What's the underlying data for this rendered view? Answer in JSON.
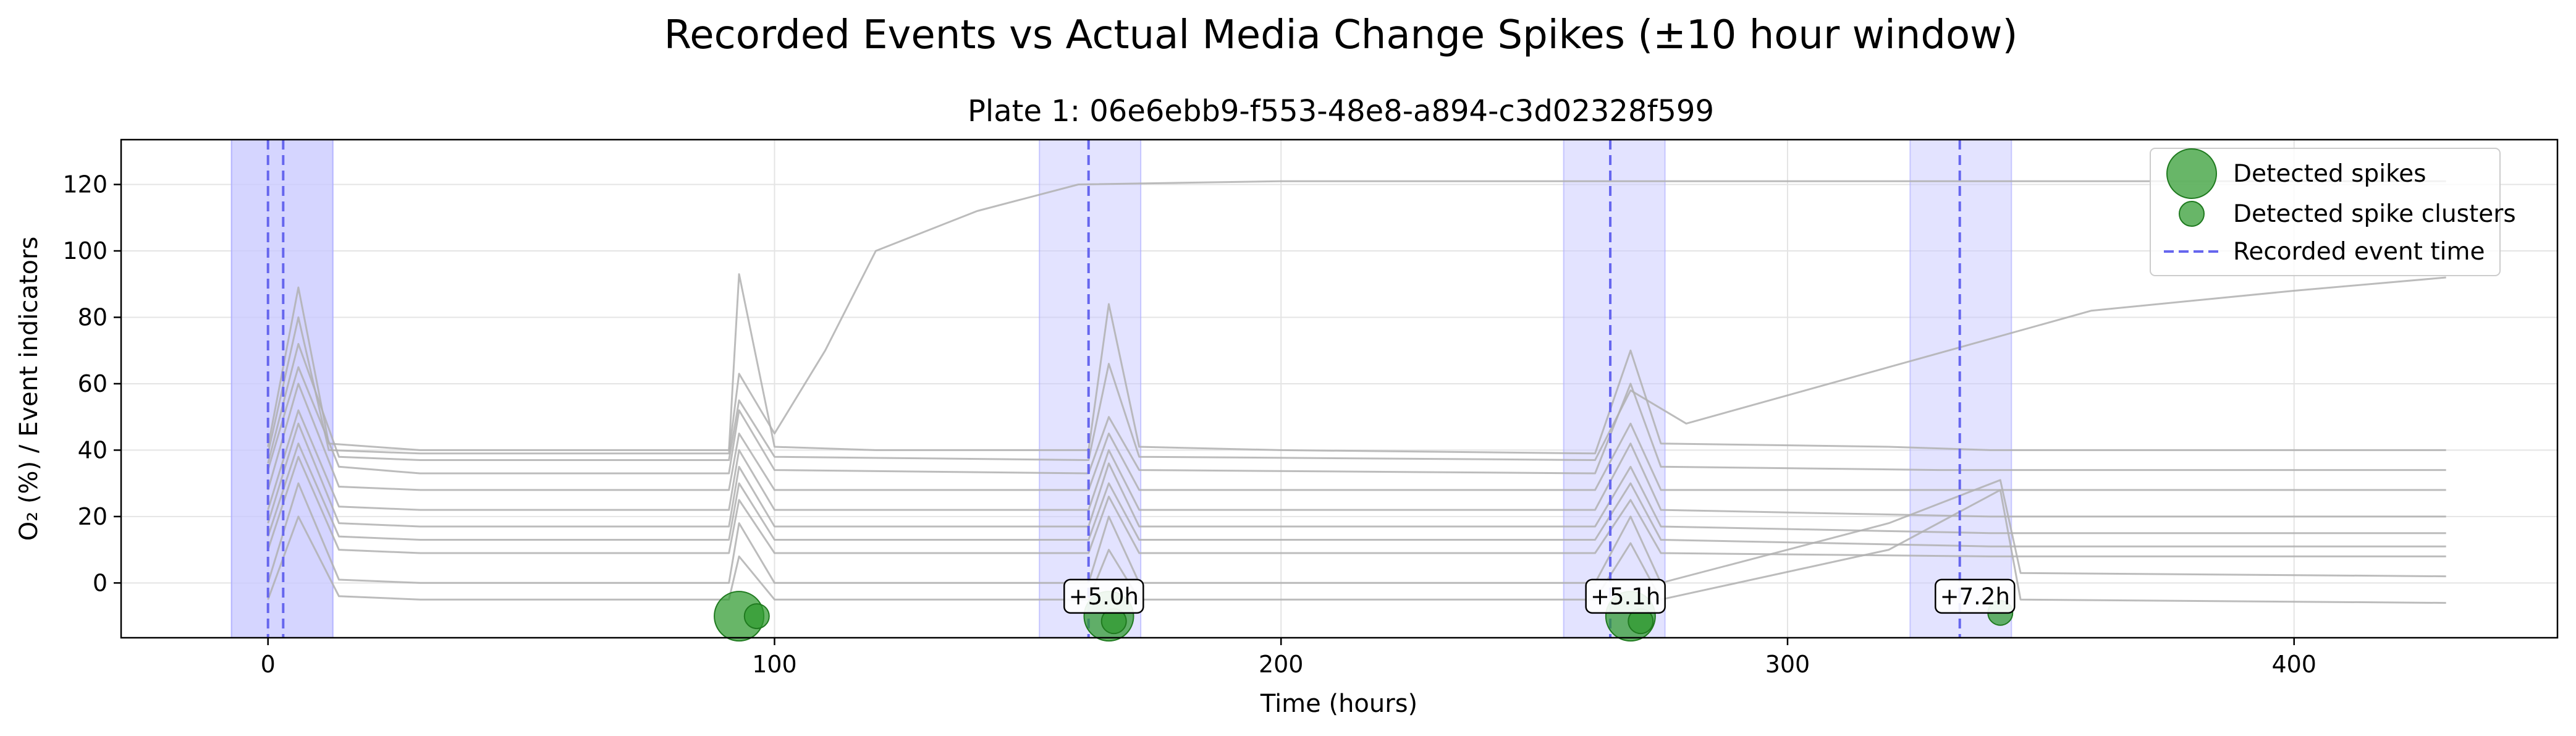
{
  "figure": {
    "suptitle": "Recorded Events vs Actual Media Change Spikes (±10 hour window)"
  },
  "chart_data": {
    "type": "line",
    "title": "Plate 1: 06e6ebb9-f553-48e8-a894-c3d02328f599",
    "xlabel": "Time (hours)",
    "ylabel": "O₂ (%) / Event indicators",
    "xlim": [
      -29,
      452
    ],
    "ylim": [
      -16.5,
      133.5
    ],
    "xticks": [
      0,
      100,
      200,
      300,
      400
    ],
    "yticks": [
      0,
      20,
      40,
      60,
      80,
      100,
      120
    ],
    "grid": true,
    "legend": {
      "placement": "upper right",
      "entries": [
        {
          "label": "Detected spikes",
          "kind": "marker-large"
        },
        {
          "label": "Detected spike clusters",
          "kind": "marker-small"
        },
        {
          "label": "Recorded event time",
          "kind": "dashed-line"
        }
      ]
    },
    "colors": {
      "event_line": "#6666ee",
      "window_fill": "#c8c8ff",
      "spike_marker": "#2e9a2e",
      "trace": "#b0b0b0"
    },
    "recorded_events": [
      {
        "time": 0,
        "window": [
          -7.2,
          12.8
        ]
      },
      {
        "time": 3,
        "window": [
          -7.2,
          12.8
        ]
      },
      {
        "time": 162,
        "window": [
          152.3,
          172.3
        ],
        "offset_label": "+5.0h",
        "label_y": -4
      },
      {
        "time": 265,
        "window": [
          255.8,
          275.8
        ],
        "offset_label": "+5.1h",
        "label_y": -4
      },
      {
        "time": 334,
        "window": [
          324.2,
          344.2
        ],
        "offset_label": "+7.2h",
        "label_y": -4
      }
    ],
    "detected_spikes": [
      {
        "x": 93,
        "y": -10,
        "size": "large"
      },
      {
        "x": 96.5,
        "y": -10,
        "size": "small"
      },
      {
        "x": 166,
        "y": -10,
        "size": "large"
      },
      {
        "x": 167,
        "y": -11.5,
        "size": "small"
      },
      {
        "x": 269,
        "y": -10,
        "size": "large"
      },
      {
        "x": 271,
        "y": -11.5,
        "size": "small"
      },
      {
        "x": 342,
        "y": -9,
        "size": "small"
      }
    ],
    "series": [
      {
        "x": [
          0,
          6,
          12,
          30,
          91,
          93,
          100,
          120,
          150,
          162,
          166,
          172,
          200,
          262,
          269,
          275,
          320,
          340,
          430
        ],
        "y": [
          41,
          89,
          42,
          40,
          40,
          93,
          41,
          40,
          40,
          40,
          84,
          41,
          40,
          39,
          70,
          42,
          41,
          40,
          40
        ]
      },
      {
        "x": [
          0,
          6,
          12,
          30,
          91,
          93,
          100,
          110,
          120,
          140,
          160,
          200,
          300,
          400,
          430
        ],
        "y": [
          39,
          80,
          40,
          39,
          39,
          63,
          45,
          70,
          100,
          112,
          120,
          121,
          121,
          121,
          121
        ]
      },
      {
        "x": [
          0,
          6,
          14,
          30,
          91,
          93,
          100,
          162,
          166,
          172,
          262,
          269,
          280,
          320,
          360,
          400,
          430
        ],
        "y": [
          36,
          72,
          38,
          37,
          37,
          55,
          38,
          37,
          66,
          38,
          37,
          58,
          48,
          65,
          82,
          88,
          92
        ]
      },
      {
        "x": [
          0,
          6,
          14,
          30,
          91,
          93,
          100,
          162,
          166,
          172,
          262,
          269,
          275,
          330,
          430
        ],
        "y": [
          34,
          65,
          35,
          33,
          33,
          52,
          34,
          33,
          50,
          34,
          33,
          60,
          35,
          34,
          34
        ]
      },
      {
        "x": [
          0,
          6,
          14,
          30,
          91,
          93,
          100,
          162,
          166,
          172,
          262,
          269,
          275,
          330,
          340,
          430
        ],
        "y": [
          28,
          60,
          29,
          28,
          28,
          45,
          28,
          28,
          45,
          28,
          28,
          48,
          28,
          28,
          28,
          28
        ]
      },
      {
        "x": [
          0,
          6,
          14,
          30,
          91,
          93,
          100,
          162,
          166,
          172,
          262,
          269,
          275,
          340,
          430
        ],
        "y": [
          22,
          52,
          23,
          22,
          22,
          40,
          22,
          22,
          40,
          22,
          22,
          42,
          22,
          20,
          20
        ]
      },
      {
        "x": [
          0,
          6,
          14,
          30,
          91,
          93,
          100,
          162,
          166,
          172,
          262,
          269,
          275,
          340,
          430
        ],
        "y": [
          18,
          48,
          18,
          17,
          17,
          35,
          17,
          17,
          36,
          17,
          17,
          35,
          17,
          15,
          15
        ]
      },
      {
        "x": [
          0,
          6,
          14,
          30,
          91,
          93,
          100,
          162,
          166,
          172,
          262,
          269,
          275,
          340,
          430
        ],
        "y": [
          14,
          42,
          14,
          13,
          13,
          30,
          13,
          13,
          30,
          13,
          13,
          30,
          13,
          11,
          11
        ]
      },
      {
        "x": [
          0,
          6,
          14,
          30,
          91,
          93,
          100,
          162,
          166,
          172,
          262,
          269,
          275,
          340,
          430
        ],
        "y": [
          10,
          38,
          10,
          9,
          9,
          25,
          9,
          9,
          26,
          9,
          9,
          25,
          9,
          8,
          8
        ]
      },
      {
        "x": [
          0,
          6,
          14,
          30,
          91,
          93,
          100,
          162,
          166,
          172,
          262,
          269,
          275,
          320,
          342,
          346,
          430
        ],
        "y": [
          0,
          30,
          1,
          0,
          0,
          18,
          0,
          0,
          20,
          0,
          0,
          20,
          0,
          18,
          31,
          3,
          2
        ]
      },
      {
        "x": [
          0,
          6,
          14,
          30,
          91,
          93,
          100,
          162,
          166,
          172,
          262,
          269,
          275,
          320,
          342,
          346,
          430
        ],
        "y": [
          -5,
          20,
          -4,
          -5,
          -5,
          8,
          -5,
          -5,
          10,
          -5,
          -5,
          12,
          -5,
          10,
          28,
          -5,
          -6
        ]
      }
    ]
  }
}
